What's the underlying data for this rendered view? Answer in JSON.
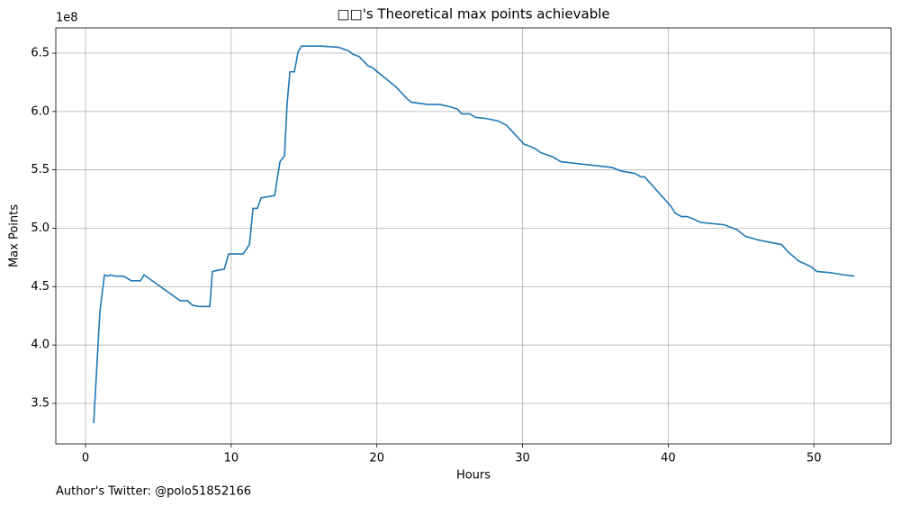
{
  "chart_data": {
    "type": "line",
    "title": "□□'s Theoretical max points achievable",
    "xlabel": "Hours",
    "ylabel": "Max Points",
    "offset_text": "1e8",
    "footer": "Author's Twitter: @polo51852166",
    "grid": true,
    "xlim": [
      -2.04,
      55.3
    ],
    "ylim": [
      3.153,
      6.716
    ],
    "xticks": [
      0,
      10,
      20,
      30,
      40,
      50
    ],
    "yticks": [
      3.5,
      4.0,
      4.5,
      5.0,
      5.5,
      6.0,
      6.5
    ],
    "series": [
      {
        "color": "#1f77b4",
        "x": [
          0.56,
          0.99,
          1.3,
          1.55,
          1.73,
          2.04,
          2.6,
          3.15,
          3.77,
          4.02,
          6.49,
          6.98,
          7.35,
          7.79,
          8.53,
          8.71,
          9.09,
          9.52,
          9.83,
          10.82,
          11.25,
          11.5,
          11.8,
          12.05,
          12.98,
          13.35,
          13.66,
          13.84,
          14.03,
          14.34,
          14.59,
          14.83,
          16.19,
          17.37,
          18.05,
          18.36,
          18.79,
          19.41,
          19.65,
          21.32,
          22.06,
          22.37,
          23.49,
          24.35,
          25.03,
          25.53,
          25.83,
          26.39,
          26.76,
          27.5,
          28.31,
          28.92,
          30.1,
          30.35,
          30.9,
          31.21,
          32.08,
          32.63,
          36.16,
          36.77,
          37.7,
          38.13,
          38.38,
          40.17,
          40.48,
          40.91,
          41.29,
          41.72,
          42.21,
          43.82,
          44.69,
          45.3,
          46.17,
          47.78,
          48.21,
          48.95,
          49.82,
          50.19,
          51.11,
          52.1,
          52.78
        ],
        "values": [
          3.33,
          4.29,
          4.6,
          4.59,
          4.6,
          4.59,
          4.59,
          4.55,
          4.55,
          4.6,
          4.38,
          4.38,
          4.34,
          4.33,
          4.33,
          4.63,
          4.64,
          4.65,
          4.78,
          4.78,
          4.86,
          5.17,
          5.17,
          5.26,
          5.28,
          5.57,
          5.62,
          6.07,
          6.34,
          6.34,
          6.51,
          6.56,
          6.56,
          6.55,
          6.52,
          6.49,
          6.47,
          6.39,
          6.38,
          6.21,
          6.11,
          6.08,
          6.06,
          6.06,
          6.04,
          6.02,
          5.98,
          5.98,
          5.95,
          5.94,
          5.92,
          5.88,
          5.72,
          5.71,
          5.68,
          5.65,
          5.61,
          5.57,
          5.52,
          5.49,
          5.47,
          5.44,
          5.44,
          5.19,
          5.13,
          5.1,
          5.1,
          5.08,
          5.05,
          5.03,
          4.99,
          4.93,
          4.9,
          4.86,
          4.8,
          4.72,
          4.67,
          4.63,
          4.62,
          4.6,
          4.59
        ]
      }
    ]
  }
}
